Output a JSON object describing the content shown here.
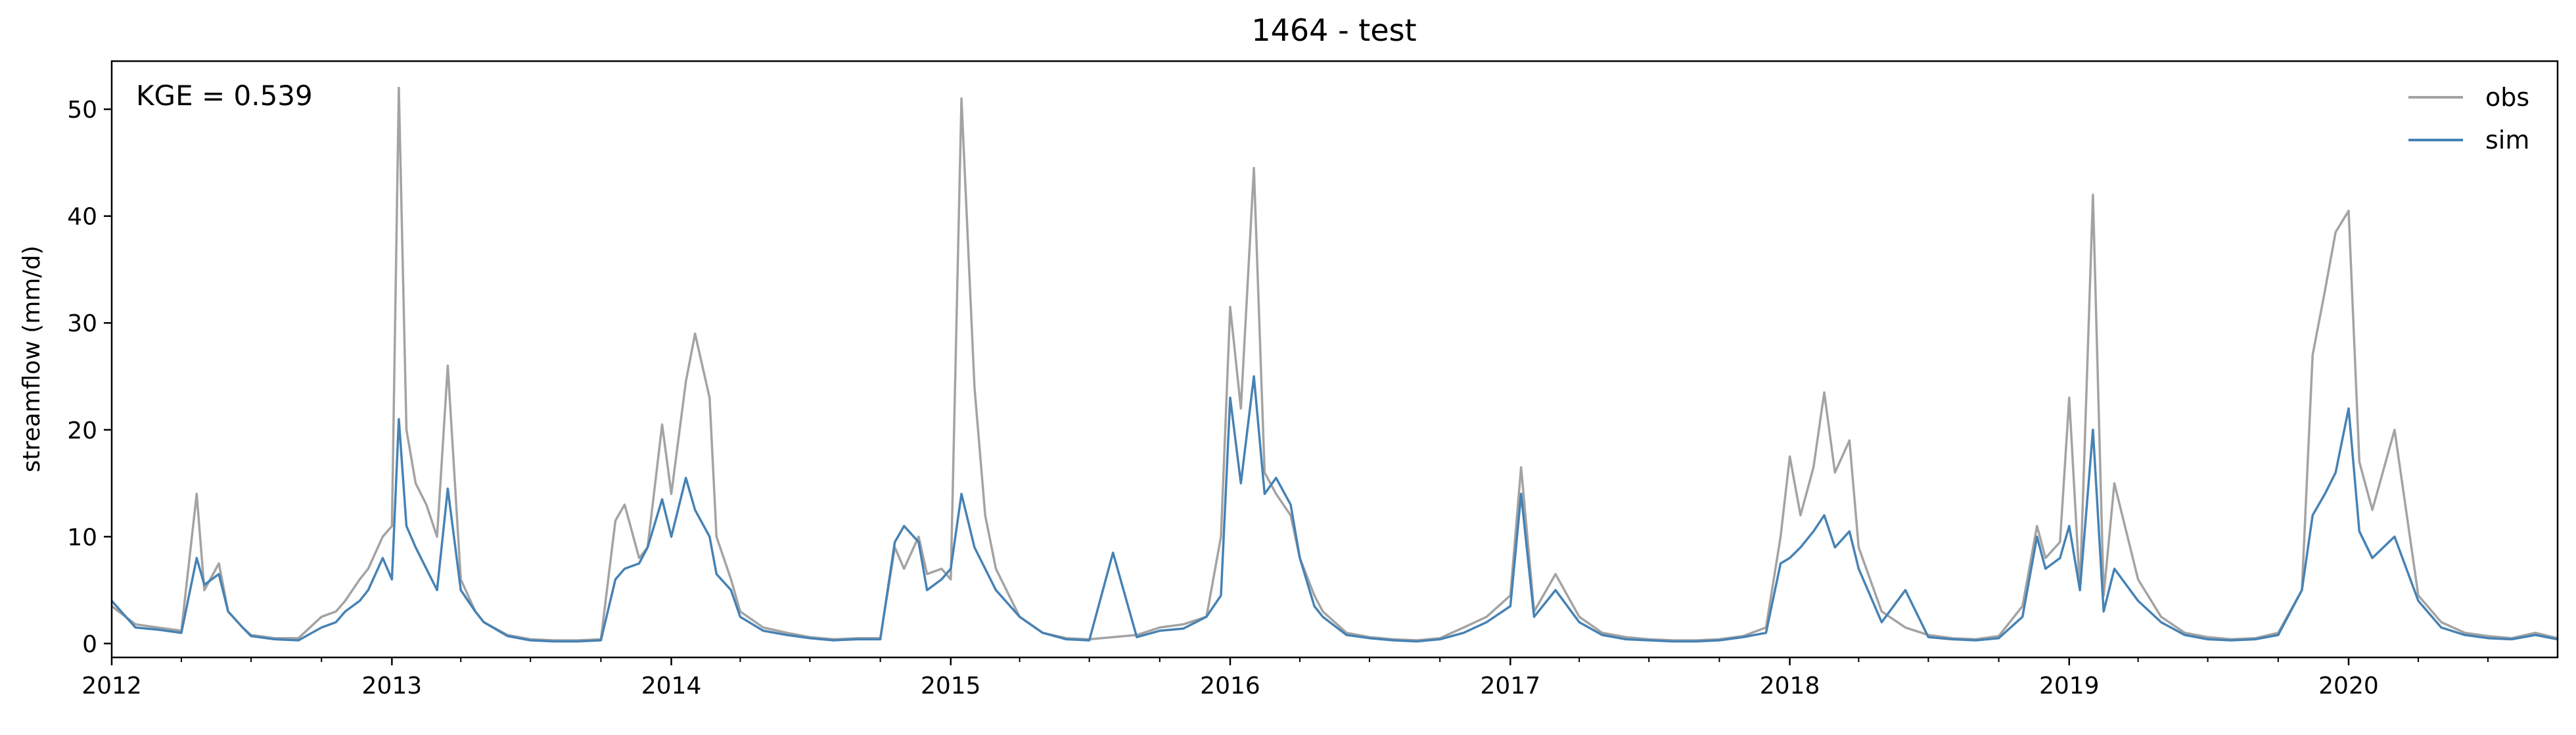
{
  "chart_data": {
    "type": "line",
    "title": "1464 - test",
    "xlabel": "",
    "ylabel": "streamflow (mm/d)",
    "annotation": "KGE = 0.539",
    "xlim": [
      "2012-01-01",
      "2020-09-30"
    ],
    "ylim": [
      -1.3,
      54.5
    ],
    "x_ticks": [
      "2012",
      "2013",
      "2014",
      "2015",
      "2016",
      "2017",
      "2018",
      "2019",
      "2020"
    ],
    "y_ticks": [
      0,
      10,
      20,
      30,
      40,
      50
    ],
    "grid": false,
    "legend_position": "top-right",
    "x": [
      "2012-01-01",
      "2012-02-01",
      "2012-03-01",
      "2012-04-01",
      "2012-04-21",
      "2012-05-01",
      "2012-05-20",
      "2012-06-01",
      "2012-06-20",
      "2012-07-01",
      "2012-08-01",
      "2012-09-01",
      "2012-10-01",
      "2012-10-20",
      "2012-11-01",
      "2012-11-20",
      "2012-12-01",
      "2012-12-20",
      "2013-01-01",
      "2013-01-10",
      "2013-01-20",
      "2013-02-01",
      "2013-02-15",
      "2013-03-01",
      "2013-03-15",
      "2013-04-01",
      "2013-04-20",
      "2013-05-01",
      "2013-06-01",
      "2013-07-01",
      "2013-08-01",
      "2013-09-01",
      "2013-10-01",
      "2013-10-20",
      "2013-11-01",
      "2013-11-20",
      "2013-12-01",
      "2013-12-20",
      "2014-01-01",
      "2014-01-20",
      "2014-02-01",
      "2014-02-20",
      "2014-03-01",
      "2014-03-20",
      "2014-04-01",
      "2014-05-01",
      "2014-06-01",
      "2014-07-01",
      "2014-08-01",
      "2014-09-01",
      "2014-10-01",
      "2014-10-20",
      "2014-11-01",
      "2014-11-20",
      "2014-12-01",
      "2014-12-20",
      "2015-01-01",
      "2015-01-15",
      "2015-02-01",
      "2015-02-15",
      "2015-03-01",
      "2015-04-01",
      "2015-05-01",
      "2015-06-01",
      "2015-07-01",
      "2015-08-01",
      "2015-09-01",
      "2015-10-01",
      "2015-11-01",
      "2015-12-01",
      "2015-12-20",
      "2016-01-01",
      "2016-01-15",
      "2016-02-01",
      "2016-02-15",
      "2016-03-01",
      "2016-03-20",
      "2016-04-01",
      "2016-04-20",
      "2016-05-01",
      "2016-06-01",
      "2016-07-01",
      "2016-08-01",
      "2016-09-01",
      "2016-10-01",
      "2016-11-01",
      "2016-12-01",
      "2017-01-01",
      "2017-01-15",
      "2017-02-01",
      "2017-03-01",
      "2017-04-01",
      "2017-05-01",
      "2017-06-01",
      "2017-07-01",
      "2017-08-01",
      "2017-09-01",
      "2017-10-01",
      "2017-11-01",
      "2017-12-01",
      "2017-12-20",
      "2018-01-01",
      "2018-01-15",
      "2018-02-01",
      "2018-02-15",
      "2018-03-01",
      "2018-03-20",
      "2018-04-01",
      "2018-05-01",
      "2018-06-01",
      "2018-07-01",
      "2018-08-01",
      "2018-09-01",
      "2018-10-01",
      "2018-11-01",
      "2018-11-20",
      "2018-12-01",
      "2018-12-20",
      "2019-01-01",
      "2019-01-15",
      "2019-02-01",
      "2019-02-15",
      "2019-03-01",
      "2019-04-01",
      "2019-05-01",
      "2019-06-01",
      "2019-07-01",
      "2019-08-01",
      "2019-09-01",
      "2019-10-01",
      "2019-11-01",
      "2019-11-15",
      "2019-12-01",
      "2019-12-15",
      "2020-01-01",
      "2020-01-15",
      "2020-02-01",
      "2020-03-01",
      "2020-04-01",
      "2020-05-01",
      "2020-06-01",
      "2020-07-01",
      "2020-08-01",
      "2020-09-01",
      "2020-09-30"
    ],
    "series": [
      {
        "name": "obs",
        "color": "#a3a3a3",
        "values": [
          3.5,
          1.8,
          1.5,
          1.2,
          14.0,
          5.0,
          7.5,
          3.0,
          1.5,
          0.8,
          0.5,
          0.5,
          2.5,
          3.0,
          4.0,
          6.0,
          7.0,
          10.0,
          11.0,
          52.0,
          20.0,
          15.0,
          13.0,
          10.0,
          26.0,
          6.0,
          3.0,
          2.0,
          0.8,
          0.4,
          0.3,
          0.3,
          0.4,
          11.5,
          13.0,
          8.0,
          9.0,
          20.5,
          14.0,
          24.5,
          29.0,
          23.0,
          10.0,
          6.0,
          3.0,
          1.5,
          1.0,
          0.6,
          0.4,
          0.5,
          0.5,
          9.0,
          7.0,
          10.0,
          6.5,
          7.0,
          6.0,
          51.0,
          24.0,
          12.0,
          7.0,
          2.5,
          1.0,
          0.5,
          0.4,
          0.6,
          0.8,
          1.5,
          1.8,
          2.5,
          10.0,
          31.5,
          22.0,
          44.5,
          16.0,
          14.0,
          12.0,
          8.0,
          4.5,
          3.0,
          1.0,
          0.6,
          0.4,
          0.3,
          0.5,
          1.5,
          2.5,
          4.5,
          16.5,
          3.0,
          6.5,
          2.5,
          1.0,
          0.6,
          0.4,
          0.3,
          0.3,
          0.4,
          0.7,
          1.5,
          10.0,
          17.5,
          12.0,
          16.5,
          23.5,
          16.0,
          19.0,
          9.0,
          3.0,
          1.5,
          0.8,
          0.5,
          0.4,
          0.7,
          3.5,
          11.0,
          8.0,
          9.5,
          23.0,
          5.0,
          42.0,
          4.5,
          15.0,
          6.0,
          2.5,
          1.0,
          0.6,
          0.4,
          0.5,
          1.0,
          5.0,
          27.0,
          33.0,
          38.5,
          40.5,
          17.0,
          12.5,
          20.0,
          4.5,
          2.0,
          1.0,
          0.7,
          0.5,
          1.0,
          0.5
        ]
      },
      {
        "name": "sim",
        "color": "#4682b4",
        "values": [
          4.0,
          1.5,
          1.3,
          1.0,
          8.0,
          5.5,
          6.5,
          3.0,
          1.5,
          0.7,
          0.4,
          0.3,
          1.5,
          2.0,
          3.0,
          4.0,
          5.0,
          8.0,
          6.0,
          21.0,
          11.0,
          9.0,
          7.0,
          5.0,
          14.5,
          5.0,
          3.0,
          2.0,
          0.7,
          0.3,
          0.2,
          0.2,
          0.3,
          6.0,
          7.0,
          7.5,
          9.0,
          13.5,
          10.0,
          15.5,
          12.5,
          10.0,
          6.5,
          5.0,
          2.5,
          1.2,
          0.8,
          0.5,
          0.3,
          0.4,
          0.4,
          9.5,
          11.0,
          9.5,
          5.0,
          6.0,
          7.0,
          14.0,
          9.0,
          7.0,
          5.0,
          2.5,
          1.0,
          0.4,
          0.3,
          8.5,
          0.6,
          1.2,
          1.4,
          2.5,
          4.5,
          23.0,
          15.0,
          25.0,
          14.0,
          15.5,
          13.0,
          8.0,
          3.5,
          2.5,
          0.8,
          0.5,
          0.3,
          0.2,
          0.4,
          1.0,
          2.0,
          3.5,
          14.0,
          2.5,
          5.0,
          2.0,
          0.8,
          0.4,
          0.3,
          0.2,
          0.2,
          0.3,
          0.6,
          1.0,
          7.5,
          8.0,
          9.0,
          10.5,
          12.0,
          9.0,
          10.5,
          7.0,
          2.0,
          5.0,
          0.6,
          0.4,
          0.3,
          0.5,
          2.5,
          10.0,
          7.0,
          8.0,
          11.0,
          5.0,
          20.0,
          3.0,
          7.0,
          4.0,
          2.0,
          0.8,
          0.4,
          0.3,
          0.4,
          0.8,
          5.0,
          12.0,
          14.0,
          16.0,
          22.0,
          10.5,
          8.0,
          10.0,
          4.0,
          1.5,
          0.8,
          0.5,
          0.4,
          0.8,
          0.4
        ]
      }
    ]
  }
}
